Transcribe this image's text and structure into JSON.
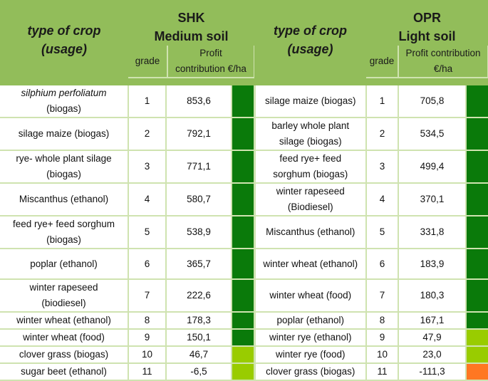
{
  "header": {
    "type_of_crop": "type of crop",
    "usage": "(usage)",
    "shk_title": "SHK",
    "shk_soil": "Medium soil",
    "opr_title": "OPR",
    "opr_soil": "Light soil",
    "grade": "grade",
    "profit_line1": "Profit",
    "profit_line2": "contribution €/ha",
    "opr_profit_line1": "Profit contribution",
    "opr_profit_line2": "€/ha"
  },
  "colors": {
    "dark_green": "#0a7a0a",
    "light_green": "#99cc00",
    "orange": "#ff7722"
  },
  "rows": [
    {
      "shk_crop": "silphium perfoliatum",
      "shk_crop2": "(biogas)",
      "shk_grade": "1",
      "shk_profit": "853,6",
      "shk_color": "#0a7a0a",
      "opr_crop": "silage maize (biogas)",
      "opr_crop2": "",
      "opr_grade": "1",
      "opr_profit": "705,8",
      "opr_color": "#0a7a0a"
    },
    {
      "shk_crop": "silage maize (biogas)",
      "shk_crop2": "",
      "shk_grade": "2",
      "shk_profit": "792,1",
      "shk_color": "#0a7a0a",
      "opr_crop": "barley whole plant",
      "opr_crop2": "silage (biogas)",
      "opr_grade": "2",
      "opr_profit": "534,5",
      "opr_color": "#0a7a0a"
    },
    {
      "shk_crop": "rye- whole plant silage",
      "shk_crop2": "(biogas)",
      "shk_grade": "3",
      "shk_profit": "771,1",
      "shk_color": "#0a7a0a",
      "opr_crop": "feed rye+ feed",
      "opr_crop2": "sorghum (biogas)",
      "opr_grade": "3",
      "opr_profit": "499,4",
      "opr_color": "#0a7a0a"
    },
    {
      "shk_crop": "Miscanthus (ethanol)",
      "shk_crop2": "",
      "shk_grade": "4",
      "shk_profit": "580,7",
      "shk_color": "#0a7a0a",
      "opr_crop": "winter rapeseed",
      "opr_crop2": "(Biodiesel)",
      "opr_grade": "4",
      "opr_profit": "370,1",
      "opr_color": "#0a7a0a"
    },
    {
      "shk_crop": "feed rye+ feed sorghum",
      "shk_crop2": "(biogas)",
      "shk_grade": "5",
      "shk_profit": "538,9",
      "shk_color": "#0a7a0a",
      "opr_crop": "Miscanthus (ethanol)",
      "opr_crop2": "",
      "opr_grade": "5",
      "opr_profit": "331,8",
      "opr_color": "#0a7a0a"
    },
    {
      "shk_crop": "poplar (ethanol)",
      "shk_crop2": "",
      "shk_grade": "6",
      "shk_profit": "365,7",
      "shk_color": "#0a7a0a",
      "opr_crop": "winter wheat (ethanol)",
      "opr_crop2": "",
      "opr_grade": "6",
      "opr_profit": "183,9",
      "opr_color": "#0a7a0a"
    },
    {
      "shk_crop": "winter rapeseed",
      "shk_crop2": "(biodiesel)",
      "shk_grade": "7",
      "shk_profit": "222,6",
      "shk_color": "#0a7a0a",
      "opr_crop": "winter wheat (food)",
      "opr_crop2": "",
      "opr_grade": "7",
      "opr_profit": "180,3",
      "opr_color": "#0a7a0a"
    },
    {
      "shk_crop": "winter wheat (ethanol)",
      "shk_crop2": "",
      "shk_grade": "8",
      "shk_profit": "178,3",
      "shk_color": "#0a7a0a",
      "opr_crop": "poplar (ethanol)",
      "opr_crop2": "",
      "opr_grade": "8",
      "opr_profit": "167,1",
      "opr_color": "#0a7a0a"
    },
    {
      "shk_crop": "winter wheat  (food)",
      "shk_crop2": "",
      "shk_grade": "9",
      "shk_profit": "150,1",
      "shk_color": "#0a7a0a",
      "opr_crop": "winter rye (ethanol)",
      "opr_crop2": "",
      "opr_grade": "9",
      "opr_profit": "47,9",
      "opr_color": "#99cc00"
    },
    {
      "shk_crop": "clover grass (biogas)",
      "shk_crop2": "",
      "shk_grade": "10",
      "shk_profit": "46,7",
      "shk_color": "#99cc00",
      "opr_crop": "winter rye (food)",
      "opr_crop2": "",
      "opr_grade": "10",
      "opr_profit": "23,0",
      "opr_color": "#99cc00"
    },
    {
      "shk_crop": "sugar beet (ethanol)",
      "shk_crop2": "",
      "shk_grade": "11",
      "shk_profit": "-6,5",
      "shk_color": "#99cc00",
      "opr_crop": "clover grass (biogas)",
      "opr_crop2": "",
      "opr_grade": "11",
      "opr_profit": "-111,3",
      "opr_color": "#ff7722"
    }
  ]
}
